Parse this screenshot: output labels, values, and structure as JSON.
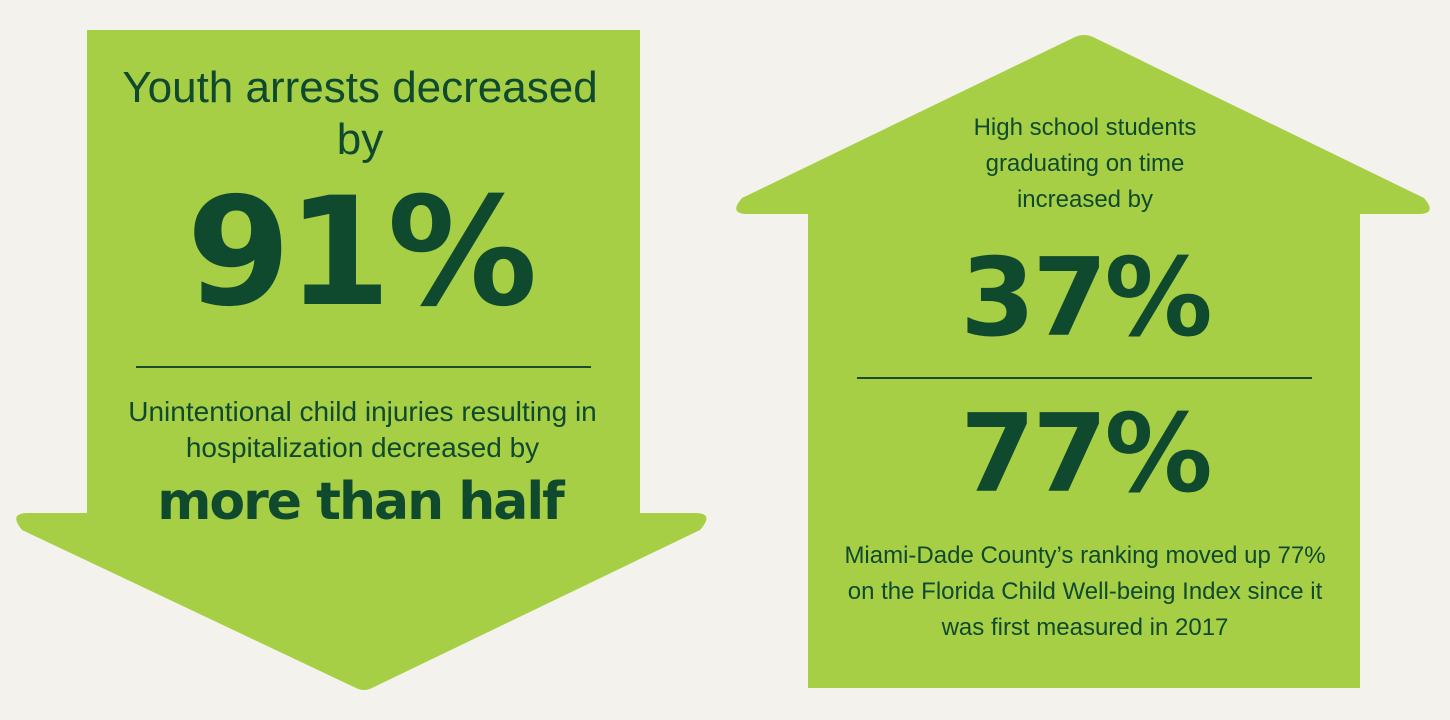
{
  "colors": {
    "background": "#f4f2ec",
    "shape_fill": "#a6cf46",
    "text": "#0f4a2e"
  },
  "left_arrow": {
    "heading": "Youth arrests decreased by",
    "big_stat": "91%",
    "subtext": "Unintentional child injuries resulting in hospitalization decreased by",
    "emphasis": "more than half"
  },
  "right_house": {
    "heading": "High school students graduating on time increased by",
    "big_stat_1": "37%",
    "big_stat_2": "77%",
    "subtext": "Miami-Dade County’s ranking moved up 77% on the Florida Child Well-being Index since it was first measured in 2017"
  }
}
